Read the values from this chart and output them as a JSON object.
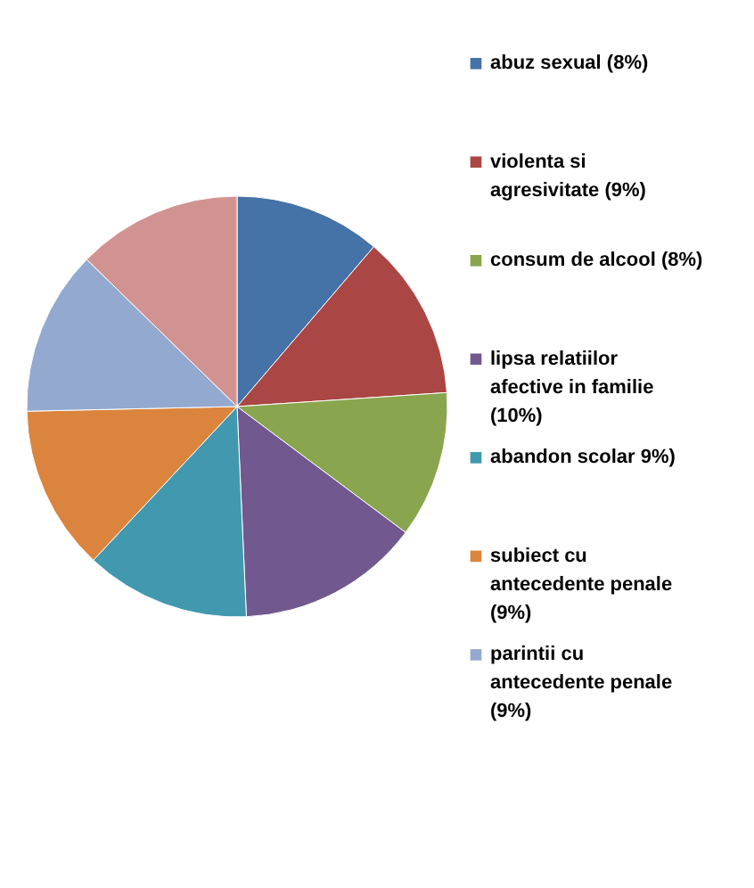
{
  "chart_data": {
    "type": "pie",
    "categories": [
      "abuz sexual (8%)",
      "violenta si agresivitate (9%)",
      "consum de alcool (8%)",
      "lipsa relatiilor afective in familie  (10%)",
      "abandon scolar 9%)",
      "subiect cu antecedente penale (9%)",
      "parintii cu antecedente penale (9%)",
      null
    ],
    "values": [
      8,
      9,
      8,
      10,
      9,
      9,
      9,
      9
    ],
    "colors": [
      "#4572a7",
      "#aa4643",
      "#89a54e",
      "#71588f",
      "#4198af",
      "#db843d",
      "#93a9cf",
      "#d19392"
    ],
    "legend": "right"
  }
}
